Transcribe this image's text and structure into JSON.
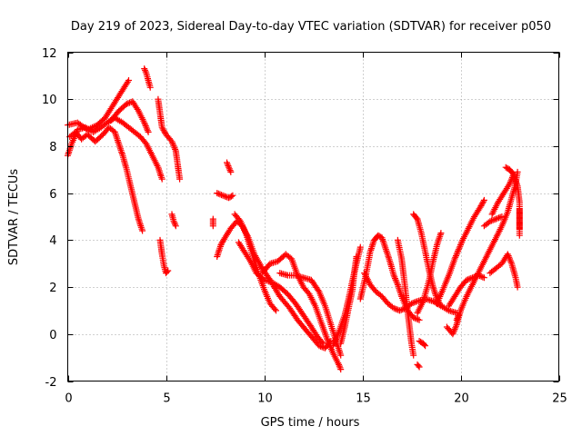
{
  "chart_data": {
    "type": "scatter",
    "title": "Day 219 of 2023, Sidereal Day-to-day VTEC variation (SDTVAR) for receiver p050",
    "xlabel": "GPS time / hours",
    "ylabel": "SDTVAR / TECUs",
    "xlim": [
      0,
      25
    ],
    "ylim": [
      -2,
      12
    ],
    "xticks": [
      0,
      5,
      10,
      15,
      20,
      25
    ],
    "yticks": [
      -2,
      0,
      2,
      4,
      6,
      8,
      10,
      12
    ],
    "grid": true,
    "marker": "+",
    "series": [
      {
        "name": "SDTVAR",
        "color": "#ff0000",
        "tracks": [
          [
            [
              0.0,
              7.6
            ],
            [
              0.2,
              8.1
            ],
            [
              0.5,
              8.7
            ],
            [
              0.9,
              8.8
            ],
            [
              1.3,
              8.6
            ],
            [
              1.7,
              8.8
            ],
            [
              2.0,
              9.0
            ],
            [
              2.4,
              9.2
            ],
            [
              2.8,
              9.0
            ],
            [
              3.1,
              8.8
            ],
            [
              3.4,
              8.6
            ],
            [
              3.7,
              8.4
            ],
            [
              4.0,
              8.1
            ],
            [
              4.3,
              7.6
            ],
            [
              4.6,
              7.1
            ],
            [
              4.8,
              6.6
            ]
          ],
          [
            [
              0.1,
              8.4
            ],
            [
              0.4,
              8.6
            ],
            [
              0.7,
              8.3
            ],
            [
              1.0,
              8.5
            ],
            [
              1.4,
              8.2
            ],
            [
              1.8,
              8.5
            ],
            [
              2.1,
              8.8
            ],
            [
              2.4,
              8.6
            ],
            [
              2.6,
              8.1
            ],
            [
              2.8,
              7.6
            ],
            [
              3.0,
              7.0
            ],
            [
              3.2,
              6.3
            ],
            [
              3.4,
              5.6
            ],
            [
              3.6,
              4.9
            ],
            [
              3.8,
              4.4
            ]
          ],
          [
            [
              0.0,
              8.9
            ],
            [
              0.5,
              9.0
            ],
            [
              1.0,
              8.7
            ],
            [
              1.5,
              8.9
            ],
            [
              1.9,
              9.2
            ],
            [
              2.2,
              9.6
            ],
            [
              2.5,
              10.0
            ],
            [
              2.8,
              10.4
            ],
            [
              3.1,
              10.8
            ]
          ],
          [
            [
              2.2,
              9.1
            ],
            [
              2.6,
              9.5
            ],
            [
              3.0,
              9.8
            ],
            [
              3.3,
              9.9
            ],
            [
              3.6,
              9.5
            ],
            [
              3.9,
              9.0
            ],
            [
              4.1,
              8.6
            ]
          ],
          [
            [
              3.9,
              11.3
            ],
            [
              4.0,
              11.1
            ],
            [
              4.1,
              10.8
            ],
            [
              4.2,
              10.5
            ]
          ],
          [
            [
              4.6,
              10.0
            ],
            [
              4.7,
              9.4
            ],
            [
              4.8,
              8.8
            ],
            [
              5.0,
              8.5
            ],
            [
              5.3,
              8.2
            ],
            [
              5.5,
              7.8
            ],
            [
              5.6,
              7.2
            ],
            [
              5.7,
              6.6
            ]
          ],
          [
            [
              4.7,
              4.0
            ],
            [
              4.8,
              3.4
            ],
            [
              4.9,
              2.9
            ],
            [
              5.0,
              2.6
            ],
            [
              5.1,
              2.7
            ]
          ],
          [
            [
              5.3,
              5.1
            ],
            [
              5.4,
              4.8
            ],
            [
              5.5,
              4.6
            ]
          ],
          [
            [
              7.4,
              4.9
            ],
            [
              7.4,
              4.6
            ]
          ],
          [
            [
              7.6,
              3.3
            ],
            [
              7.8,
              3.8
            ],
            [
              8.0,
              4.1
            ],
            [
              8.3,
              4.5
            ],
            [
              8.6,
              4.8
            ],
            [
              8.9,
              4.6
            ],
            [
              9.2,
              4.1
            ],
            [
              9.5,
              3.4
            ],
            [
              9.9,
              2.8
            ],
            [
              10.3,
              2.3
            ],
            [
              10.8,
              1.6
            ],
            [
              11.3,
              1.1
            ],
            [
              11.7,
              0.6
            ],
            [
              12.1,
              0.2
            ],
            [
              12.5,
              -0.2
            ],
            [
              12.8,
              -0.5
            ],
            [
              13.1,
              -0.6
            ],
            [
              13.4,
              -0.3
            ]
          ],
          [
            [
              7.6,
              6.0
            ],
            [
              7.9,
              5.9
            ],
            [
              8.2,
              5.8
            ],
            [
              8.4,
              5.9
            ]
          ],
          [
            [
              8.1,
              7.3
            ],
            [
              8.3,
              6.9
            ]
          ],
          [
            [
              8.5,
              5.1
            ],
            [
              8.8,
              4.8
            ],
            [
              9.1,
              4.2
            ],
            [
              9.4,
              3.4
            ],
            [
              9.7,
              2.6
            ],
            [
              10.0,
              1.9
            ],
            [
              10.3,
              1.3
            ],
            [
              10.6,
              1.0
            ]
          ],
          [
            [
              8.7,
              3.9
            ],
            [
              9.0,
              3.5
            ],
            [
              9.3,
              3.1
            ],
            [
              9.6,
              2.6
            ],
            [
              10.0,
              2.3
            ],
            [
              10.4,
              2.2
            ],
            [
              10.8,
              2.0
            ],
            [
              11.2,
              1.7
            ],
            [
              11.6,
              1.3
            ],
            [
              12.0,
              0.8
            ],
            [
              12.4,
              0.3
            ],
            [
              12.7,
              -0.1
            ],
            [
              13.0,
              -0.4
            ]
          ],
          [
            [
              9.9,
              2.6
            ],
            [
              10.3,
              3.0
            ],
            [
              10.7,
              3.1
            ],
            [
              11.1,
              3.4
            ],
            [
              11.4,
              3.2
            ],
            [
              11.7,
              2.5
            ],
            [
              12.0,
              2.0
            ],
            [
              12.3,
              1.7
            ],
            [
              12.6,
              1.2
            ],
            [
              12.9,
              0.5
            ],
            [
              13.2,
              -0.2
            ],
            [
              13.5,
              -0.8
            ],
            [
              13.8,
              -1.3
            ],
            [
              13.9,
              -1.5
            ]
          ],
          [
            [
              10.8,
              2.6
            ],
            [
              11.2,
              2.5
            ],
            [
              11.6,
              2.5
            ],
            [
              12.0,
              2.4
            ],
            [
              12.4,
              2.3
            ],
            [
              12.8,
              1.8
            ],
            [
              13.1,
              1.2
            ],
            [
              13.4,
              0.4
            ],
            [
              13.7,
              -0.4
            ],
            [
              13.9,
              -0.9
            ]
          ],
          [
            [
              13.5,
              -0.5
            ],
            [
              13.8,
              0.1
            ],
            [
              14.1,
              0.8
            ],
            [
              14.3,
              1.5
            ],
            [
              14.5,
              2.3
            ],
            [
              14.7,
              3.0
            ],
            [
              14.9,
              3.7
            ]
          ],
          [
            [
              13.9,
              -0.4
            ],
            [
              14.1,
              0.3
            ],
            [
              14.3,
              1.1
            ],
            [
              14.5,
              1.9
            ],
            [
              14.6,
              2.7
            ],
            [
              14.7,
              3.3
            ]
          ],
          [
            [
              14.9,
              1.5
            ],
            [
              15.2,
              2.6
            ],
            [
              15.4,
              3.5
            ],
            [
              15.6,
              4.0
            ],
            [
              15.8,
              4.2
            ],
            [
              16.0,
              4.1
            ],
            [
              16.2,
              3.6
            ],
            [
              16.4,
              3.1
            ],
            [
              16.6,
              2.5
            ],
            [
              16.8,
              2.1
            ],
            [
              17.0,
              1.6
            ],
            [
              17.3,
              1.0
            ],
            [
              17.6,
              0.7
            ],
            [
              17.9,
              0.6
            ]
          ],
          [
            [
              15.1,
              2.6
            ],
            [
              15.4,
              2.1
            ],
            [
              15.7,
              1.8
            ],
            [
              16.0,
              1.6
            ],
            [
              16.3,
              1.3
            ],
            [
              16.6,
              1.1
            ],
            [
              16.9,
              1.0
            ],
            [
              17.2,
              1.1
            ],
            [
              17.5,
              1.3
            ],
            [
              17.8,
              1.4
            ],
            [
              18.2,
              1.5
            ],
            [
              18.6,
              1.4
            ],
            [
              19.0,
              1.2
            ],
            [
              19.4,
              1.0
            ],
            [
              19.8,
              0.9
            ]
          ],
          [
            [
              16.8,
              4.0
            ],
            [
              17.0,
              3.2
            ],
            [
              17.1,
              2.5
            ],
            [
              17.2,
              1.8
            ],
            [
              17.3,
              1.0
            ],
            [
              17.4,
              0.3
            ],
            [
              17.5,
              -0.4
            ],
            [
              17.6,
              -0.9
            ]
          ],
          [
            [
              17.6,
              5.1
            ],
            [
              17.8,
              4.9
            ],
            [
              18.0,
              4.3
            ],
            [
              18.2,
              3.5
            ],
            [
              18.4,
              2.7
            ],
            [
              18.6,
              2.0
            ],
            [
              18.8,
              1.5
            ],
            [
              19.0,
              1.2
            ]
          ],
          [
            [
              17.8,
              0.9
            ],
            [
              18.1,
              1.4
            ],
            [
              18.4,
              2.3
            ],
            [
              18.6,
              3.1
            ],
            [
              18.8,
              3.8
            ],
            [
              19.0,
              4.3
            ]
          ],
          [
            [
              17.8,
              -1.3
            ],
            [
              17.9,
              -1.4
            ]
          ],
          [
            [
              17.9,
              -0.3
            ],
            [
              18.1,
              -0.4
            ],
            [
              18.2,
              -0.5
            ]
          ],
          [
            [
              18.8,
              1.3
            ],
            [
              19.1,
              1.9
            ],
            [
              19.4,
              2.5
            ],
            [
              19.7,
              3.2
            ],
            [
              19.9,
              3.6
            ],
            [
              20.1,
              4.0
            ],
            [
              20.4,
              4.5
            ],
            [
              20.7,
              5.0
            ],
            [
              21.0,
              5.4
            ],
            [
              21.2,
              5.7
            ]
          ],
          [
            [
              19.3,
              0.3
            ],
            [
              19.6,
              0.0
            ],
            [
              19.8,
              0.4
            ],
            [
              20.0,
              1.0
            ],
            [
              20.3,
              1.6
            ],
            [
              20.6,
              2.1
            ],
            [
              20.9,
              2.6
            ],
            [
              21.2,
              3.1
            ],
            [
              21.5,
              3.6
            ],
            [
              21.8,
              4.1
            ],
            [
              22.1,
              4.6
            ],
            [
              22.4,
              5.2
            ],
            [
              22.6,
              5.8
            ],
            [
              22.8,
              6.4
            ],
            [
              22.9,
              6.9
            ]
          ],
          [
            [
              19.4,
              1.2
            ],
            [
              19.7,
              1.6
            ],
            [
              20.0,
              2.0
            ],
            [
              20.3,
              2.3
            ],
            [
              20.6,
              2.4
            ],
            [
              20.9,
              2.5
            ],
            [
              21.2,
              2.4
            ]
          ],
          [
            [
              19.8,
              0.6
            ],
            [
              19.9,
              0.8
            ]
          ],
          [
            [
              21.5,
              2.6
            ],
            [
              21.8,
              2.8
            ],
            [
              22.1,
              3.0
            ],
            [
              22.4,
              3.4
            ],
            [
              22.6,
              3.0
            ],
            [
              22.8,
              2.4
            ],
            [
              22.9,
              2.0
            ]
          ],
          [
            [
              21.2,
              4.6
            ],
            [
              21.5,
              4.8
            ],
            [
              21.8,
              4.9
            ],
            [
              22.1,
              5.0
            ]
          ],
          [
            [
              21.6,
              5.1
            ],
            [
              21.9,
              5.6
            ],
            [
              22.2,
              6.0
            ],
            [
              22.5,
              6.4
            ],
            [
              22.7,
              6.8
            ],
            [
              22.9,
              6.3
            ],
            [
              23.0,
              5.6
            ],
            [
              23.0,
              4.5
            ]
          ],
          [
            [
              22.3,
              7.1
            ],
            [
              22.5,
              7.0
            ],
            [
              22.7,
              6.8
            ]
          ],
          [
            [
              23.0,
              5.3
            ],
            [
              23.0,
              4.2
            ]
          ]
        ]
      }
    ]
  }
}
